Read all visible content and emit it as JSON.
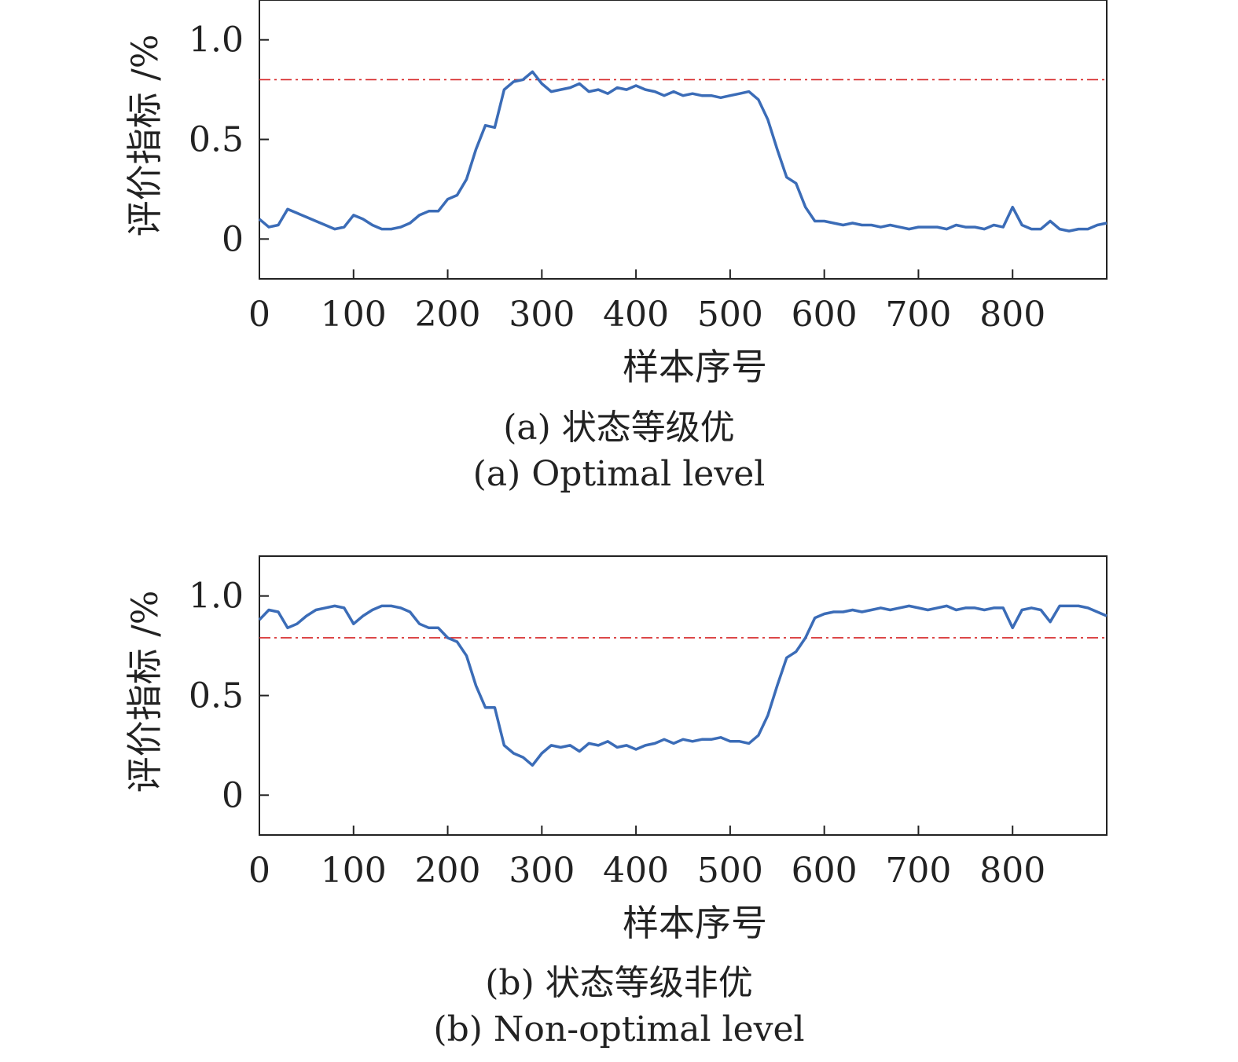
{
  "chart_data": [
    {
      "type": "line",
      "caption_cn": "(a) 状态等级优",
      "caption_en": "(a) Optimal level",
      "xlabel": "样本序号",
      "ylabel": "评价指标 /%",
      "xlim": [
        0,
        900
      ],
      "ylim": [
        -0.2,
        1.2
      ],
      "xticks": [
        "0",
        "100",
        "200",
        "300",
        "400",
        "500",
        "600",
        "700",
        "800"
      ],
      "yticks": [
        "0",
        "0.5",
        "1.0"
      ],
      "grid": false,
      "threshold": 0.8,
      "colors": {
        "line": "#3b6cb7",
        "threshold": "#d62728"
      },
      "x": [
        0,
        10,
        20,
        30,
        40,
        50,
        60,
        70,
        80,
        90,
        100,
        110,
        120,
        130,
        140,
        150,
        160,
        170,
        180,
        190,
        200,
        210,
        220,
        230,
        240,
        250,
        260,
        270,
        280,
        290,
        300,
        310,
        320,
        330,
        340,
        350,
        360,
        370,
        380,
        390,
        400,
        410,
        420,
        430,
        440,
        450,
        460,
        470,
        480,
        490,
        500,
        510,
        520,
        530,
        540,
        550,
        560,
        570,
        580,
        590,
        600,
        610,
        620,
        630,
        640,
        650,
        660,
        670,
        680,
        690,
        700,
        710,
        720,
        730,
        740,
        750,
        760,
        770,
        780,
        790,
        800,
        810,
        820,
        830,
        840,
        850,
        860,
        870,
        880,
        890,
        900
      ],
      "series": [
        {
          "values": [
            0.1,
            0.06,
            0.07,
            0.15,
            0.13,
            0.11,
            0.09,
            0.07,
            0.05,
            0.06,
            0.12,
            0.1,
            0.07,
            0.05,
            0.05,
            0.06,
            0.08,
            0.12,
            0.14,
            0.14,
            0.2,
            0.22,
            0.3,
            0.45,
            0.57,
            0.56,
            0.75,
            0.79,
            0.8,
            0.84,
            0.78,
            0.74,
            0.75,
            0.76,
            0.78,
            0.74,
            0.75,
            0.73,
            0.76,
            0.75,
            0.77,
            0.75,
            0.74,
            0.72,
            0.74,
            0.72,
            0.73,
            0.72,
            0.72,
            0.71,
            0.72,
            0.73,
            0.74,
            0.7,
            0.6,
            0.45,
            0.31,
            0.28,
            0.16,
            0.09,
            0.09,
            0.08,
            0.07,
            0.08,
            0.07,
            0.07,
            0.06,
            0.07,
            0.06,
            0.05,
            0.06,
            0.06,
            0.06,
            0.05,
            0.07,
            0.06,
            0.06,
            0.05,
            0.07,
            0.06,
            0.16,
            0.07,
            0.05,
            0.05,
            0.09,
            0.05,
            0.04,
            0.05,
            0.05,
            0.07,
            0.08
          ]
        }
      ]
    },
    {
      "type": "line",
      "caption_cn": "(b) 状态等级非优",
      "caption_en": "(b) Non-optimal level",
      "xlabel": "样本序号",
      "ylabel": "评价指标 /%",
      "xlim": [
        0,
        900
      ],
      "ylim": [
        -0.2,
        1.2
      ],
      "xticks": [
        "0",
        "100",
        "200",
        "300",
        "400",
        "500",
        "600",
        "700",
        "800"
      ],
      "yticks": [
        "0",
        "0.5",
        "1.0"
      ],
      "grid": false,
      "threshold": 0.79,
      "colors": {
        "line": "#3b6cb7",
        "threshold": "#d62728"
      },
      "x": [
        0,
        10,
        20,
        30,
        40,
        50,
        60,
        70,
        80,
        90,
        100,
        110,
        120,
        130,
        140,
        150,
        160,
        170,
        180,
        190,
        200,
        210,
        220,
        230,
        240,
        250,
        260,
        270,
        280,
        290,
        300,
        310,
        320,
        330,
        340,
        350,
        360,
        370,
        380,
        390,
        400,
        410,
        420,
        430,
        440,
        450,
        460,
        470,
        480,
        490,
        500,
        510,
        520,
        530,
        540,
        550,
        560,
        570,
        580,
        590,
        600,
        610,
        620,
        630,
        640,
        650,
        660,
        670,
        680,
        690,
        700,
        710,
        720,
        730,
        740,
        750,
        760,
        770,
        780,
        790,
        800,
        810,
        820,
        830,
        840,
        850,
        860,
        870,
        880,
        890,
        900
      ],
      "series": [
        {
          "values": [
            0.88,
            0.93,
            0.92,
            0.84,
            0.86,
            0.9,
            0.93,
            0.94,
            0.95,
            0.94,
            0.86,
            0.9,
            0.93,
            0.95,
            0.95,
            0.94,
            0.92,
            0.86,
            0.84,
            0.84,
            0.79,
            0.77,
            0.7,
            0.55,
            0.44,
            0.44,
            0.25,
            0.21,
            0.19,
            0.15,
            0.21,
            0.25,
            0.24,
            0.25,
            0.22,
            0.26,
            0.25,
            0.27,
            0.24,
            0.25,
            0.23,
            0.25,
            0.26,
            0.28,
            0.26,
            0.28,
            0.27,
            0.28,
            0.28,
            0.29,
            0.27,
            0.27,
            0.26,
            0.3,
            0.4,
            0.55,
            0.69,
            0.72,
            0.79,
            0.89,
            0.91,
            0.92,
            0.92,
            0.93,
            0.92,
            0.93,
            0.94,
            0.93,
            0.94,
            0.95,
            0.94,
            0.93,
            0.94,
            0.95,
            0.93,
            0.94,
            0.94,
            0.93,
            0.94,
            0.94,
            0.84,
            0.93,
            0.94,
            0.93,
            0.87,
            0.95,
            0.95,
            0.95,
            0.94,
            0.92,
            0.9
          ]
        }
      ]
    }
  ]
}
